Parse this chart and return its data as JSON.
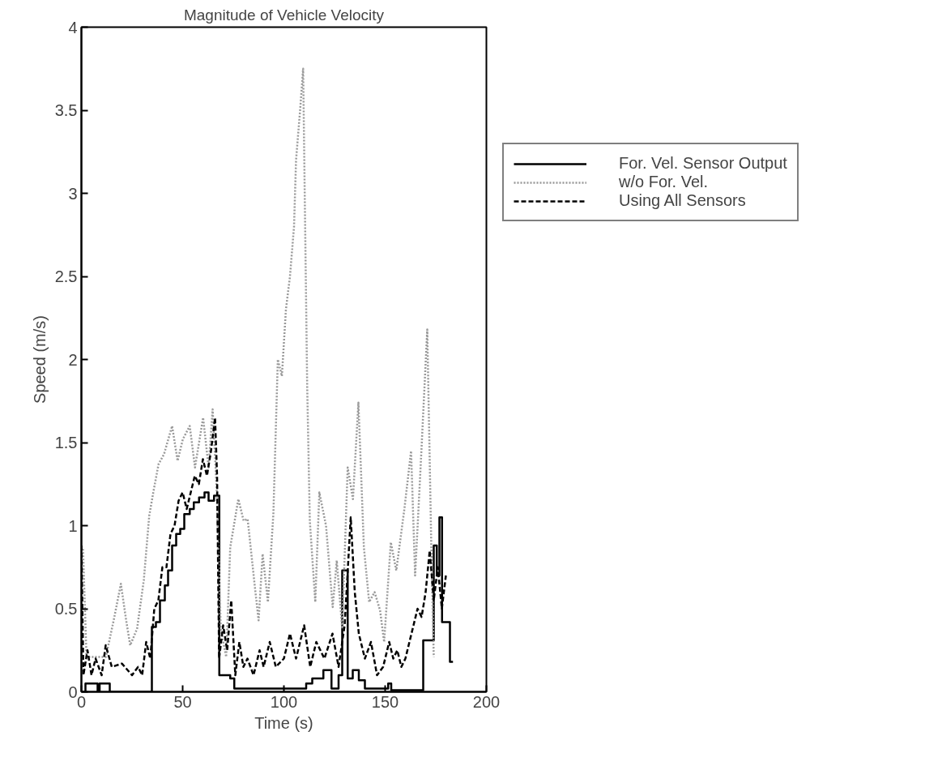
{
  "chart_data": {
    "type": "line",
    "title": "Magnitude of Vehicle Velocity",
    "xlabel": "Time (s)",
    "ylabel": "Speed (m/s)",
    "xlim": [
      0,
      200
    ],
    "xticks": [
      0,
      50,
      100,
      150,
      200
    ],
    "ylim": [
      0,
      4
    ],
    "yticks": [
      0,
      0.5,
      1,
      1.5,
      2,
      2.5,
      3,
      3.5,
      4
    ],
    "grid": false,
    "legend": "right",
    "series": [
      {
        "name": "For. Vel. Sensor Output",
        "type": "step",
        "color": "#000000",
        "line_style": "solid",
        "x": [
          0,
          2,
          8,
          9,
          14,
          34.8,
          36.8,
          38.8,
          41.2,
          42.8,
          44.8,
          46.8,
          48.8,
          50.8,
          53.5,
          55.5,
          58.1,
          60.8,
          62.8,
          65.5,
          68.1,
          73.5,
          75.5,
          111,
          114,
          119.5,
          123.5,
          127,
          128.8,
          131.5,
          134,
          137,
          140,
          151.5,
          153,
          168.8,
          174,
          175.5,
          176.8,
          178.1,
          182,
          183.5
        ],
        "values": [
          0,
          0.05,
          0,
          0.05,
          0,
          0.39,
          0.42,
          0.55,
          0.64,
          0.73,
          0.88,
          0.95,
          0.98,
          1.07,
          1.1,
          1.14,
          1.17,
          1.2,
          1.15,
          1.18,
          0.1,
          0.08,
          0.02,
          0.05,
          0.08,
          0.13,
          0.02,
          0.1,
          0.73,
          0.08,
          0.13,
          0.07,
          0.02,
          0.05,
          0.01,
          0.31,
          0.88,
          0.7,
          1.05,
          0.42,
          0.18,
          0.18
        ]
      },
      {
        "name": "w/o For. Vel.",
        "color": "#999999",
        "line_style": "dotted",
        "x": [
          0.8,
          2.5,
          12.1,
          16.1,
          19.5,
          22.1,
          24.1,
          27.5,
          30.8,
          33.5,
          35.5,
          38.1,
          40.8,
          44.8,
          47.5,
          50.1,
          53.5,
          56.1,
          60.1,
          62.8,
          64.8,
          66.8,
          68.8,
          71.5,
          73.5,
          77.5,
          80.1,
          82.1,
          85.5,
          87.5,
          89.5,
          92.1,
          94.8,
          97,
          99,
          101,
          103,
          105,
          106,
          108,
          109.5,
          111.5,
          112.8,
          115.5,
          117.5,
          120.8,
          124.1,
          126.1,
          128.8,
          131.5,
          134.1,
          136.8,
          139.5,
          142.1,
          144.8,
          147.5,
          149.5,
          152.8,
          155.5,
          159.5,
          162.8,
          164.8,
          167.5,
          170.8,
          172.8,
          174
        ],
        "values": [
          0.86,
          0.21,
          0.21,
          0.44,
          0.65,
          0.43,
          0.28,
          0.38,
          0.67,
          1.06,
          1.2,
          1.37,
          1.43,
          1.6,
          1.39,
          1.52,
          1.6,
          1.35,
          1.65,
          1.35,
          1.7,
          1.22,
          0.38,
          0.21,
          0.87,
          1.16,
          1.03,
          1.04,
          0.65,
          0.43,
          0.83,
          0.54,
          1.07,
          2.0,
          1.9,
          2.3,
          2.5,
          2.8,
          3.2,
          3.5,
          3.75,
          1.84,
          1.03,
          0.54,
          1.2,
          1.0,
          0.51,
          0.79,
          0.38,
          1.35,
          1.16,
          1.74,
          0.87,
          0.54,
          0.6,
          0.49,
          0.3,
          0.9,
          0.73,
          1.1,
          1.45,
          0.7,
          1.35,
          2.18,
          0.87,
          0.21
        ]
      },
      {
        "name": "Using All Sensors",
        "color": "#000000",
        "line_style": "dashed",
        "x": [
          0,
          1,
          3,
          5,
          7,
          10,
          12,
          15,
          20,
          25,
          28,
          30,
          32,
          34,
          36,
          38,
          40,
          42,
          44,
          46,
          48,
          50,
          52,
          54,
          56,
          58,
          60,
          62,
          64,
          66,
          67,
          68,
          70,
          72,
          74,
          76,
          78,
          80,
          82,
          85,
          88,
          90,
          93,
          96,
          100,
          103,
          106,
          110,
          113,
          116,
          120,
          124,
          127,
          130,
          133,
          135,
          137,
          140,
          143,
          146,
          149,
          152,
          154,
          156,
          158,
          160,
          162,
          164,
          166,
          168,
          170,
          172,
          174,
          176,
          178,
          180
        ],
        "values": [
          0.88,
          0.1,
          0.25,
          0.1,
          0.2,
          0.1,
          0.28,
          0.15,
          0.17,
          0.1,
          0.15,
          0.1,
          0.3,
          0.2,
          0.5,
          0.55,
          0.75,
          0.75,
          0.95,
          1.0,
          1.15,
          1.2,
          1.1,
          1.2,
          1.3,
          1.25,
          1.4,
          1.3,
          1.45,
          1.65,
          1.3,
          0.2,
          0.4,
          0.25,
          0.55,
          0.1,
          0.3,
          0.15,
          0.2,
          0.1,
          0.25,
          0.15,
          0.3,
          0.15,
          0.2,
          0.35,
          0.2,
          0.4,
          0.15,
          0.3,
          0.2,
          0.35,
          0.15,
          0.4,
          1.05,
          0.6,
          0.35,
          0.2,
          0.3,
          0.1,
          0.15,
          0.3,
          0.2,
          0.25,
          0.15,
          0.2,
          0.3,
          0.4,
          0.5,
          0.45,
          0.6,
          0.85,
          0.55,
          0.75,
          0.5,
          0.7
        ]
      }
    ]
  }
}
